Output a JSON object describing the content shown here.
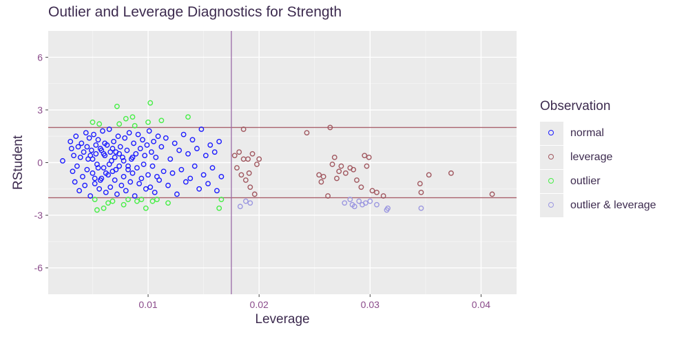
{
  "chart_data": {
    "type": "scatter",
    "title": "Outlier and Leverage Diagnostics for Strength",
    "xlabel": "Leverage",
    "ylabel": "RStudent",
    "xlim": [
      0.001,
      0.0432
    ],
    "ylim": [
      -7.5,
      7.5
    ],
    "x_ticks": [
      0.01,
      0.02,
      0.03,
      0.04
    ],
    "x_tick_labels": [
      "0.01",
      "0.02",
      "0.03",
      "0.04"
    ],
    "y_ticks": [
      -6,
      -3,
      0,
      3,
      6
    ],
    "y_tick_labels": [
      "-6",
      "-3",
      "0",
      "3",
      "6"
    ],
    "grid": true,
    "legend_position": "right",
    "legend_title": "Observation",
    "reference_lines": {
      "horizontal": [
        2,
        -2
      ],
      "vertical": [
        0.0175
      ]
    },
    "colors": {
      "panel_background": "#ebebeb",
      "grid_major": "#ffffff",
      "grid_minor": "#f5f5f5",
      "reference_line_h": "#a9616c",
      "reference_line_v": "#9a6aa6",
      "text": "#3d2b4f",
      "tick_label": "#8a4a8a"
    },
    "series": [
      {
        "name": "normal",
        "color": "#1a1aff",
        "points": [
          [
            0.0023,
            0.1
          ],
          [
            0.003,
            1.2
          ],
          [
            0.0031,
            0.8
          ],
          [
            0.0032,
            -0.5
          ],
          [
            0.0033,
            0.4
          ],
          [
            0.0034,
            -1.1
          ],
          [
            0.0035,
            1.5
          ],
          [
            0.0036,
            -0.2
          ],
          [
            0.0037,
            0.9
          ],
          [
            0.0038,
            -1.6
          ],
          [
            0.0039,
            0.3
          ],
          [
            0.004,
            1.1
          ],
          [
            0.0041,
            -0.8
          ],
          [
            0.0042,
            0.6
          ],
          [
            0.0043,
            -1.3
          ],
          [
            0.0044,
            1.7
          ],
          [
            0.0045,
            -0.4
          ],
          [
            0.0046,
            0.2
          ],
          [
            0.0047,
            1.4
          ],
          [
            0.0048,
            -1.9
          ],
          [
            0.0049,
            0.7
          ],
          [
            0.005,
            -0.6
          ],
          [
            0.0051,
            1.6
          ],
          [
            0.0052,
            -1.2
          ],
          [
            0.0053,
            0.5
          ],
          [
            0.0054,
            -0.1
          ],
          [
            0.0055,
            1.3
          ],
          [
            0.0056,
            -1.5
          ],
          [
            0.0057,
            0.8
          ],
          [
            0.0058,
            -0.9
          ],
          [
            0.0059,
            1.8
          ],
          [
            0.006,
            -0.3
          ],
          [
            0.0061,
            0.4
          ],
          [
            0.0062,
            -1.7
          ],
          [
            0.0063,
            1
          ],
          [
            0.0064,
            -0.7
          ],
          [
            0.0065,
            1.9
          ],
          [
            0.0066,
            -1.4
          ],
          [
            0.0067,
            0.1
          ],
          [
            0.0068,
            -0.5
          ],
          [
            0.0069,
            1.2
          ],
          [
            0.007,
            -1
          ],
          [
            0.0071,
            0.6
          ],
          [
            0.0072,
            -1.8
          ],
          [
            0.0073,
            1.5
          ],
          [
            0.0074,
            -0.2
          ],
          [
            0.0075,
            0.9
          ],
          [
            0.0076,
            -1.3
          ],
          [
            0.0077,
            0.3
          ],
          [
            0.0078,
            -0.8
          ],
          [
            0.0079,
            1.4
          ],
          [
            0.008,
            -1.6
          ],
          [
            0.0081,
            0.7
          ],
          [
            0.0082,
            -0.4
          ],
          [
            0.0083,
            1.7
          ],
          [
            0.0084,
            -1.1
          ],
          [
            0.0085,
            0.2
          ],
          [
            0.0086,
            -0.6
          ],
          [
            0.0087,
            1.1
          ],
          [
            0.0088,
            -1.9
          ],
          [
            0.0089,
            0.5
          ],
          [
            0.009,
            -0.3
          ],
          [
            0.0091,
            1.6
          ],
          [
            0.0092,
            -1.2
          ],
          [
            0.0093,
            0.8
          ],
          [
            0.0094,
            -0.9
          ],
          [
            0.0095,
            1.3
          ],
          [
            0.0096,
            -0.1
          ],
          [
            0.0097,
            0.4
          ],
          [
            0.0098,
            -1.5
          ],
          [
            0.0099,
            1
          ],
          [
            0.01,
            -0.7
          ],
          [
            0.0101,
            1.8
          ],
          [
            0.0102,
            -1.4
          ],
          [
            0.0103,
            0.6
          ],
          [
            0.0104,
            -0.2
          ],
          [
            0.0105,
            1.2
          ],
          [
            0.0106,
            -1.7
          ],
          [
            0.0107,
            0.3
          ],
          [
            0.0108,
            -0.8
          ],
          [
            0.0109,
            1.5
          ],
          [
            0.011,
            -1
          ],
          [
            0.0112,
            0.9
          ],
          [
            0.0114,
            -0.5
          ],
          [
            0.0116,
            1.4
          ],
          [
            0.0118,
            -1.3
          ],
          [
            0.012,
            0.2
          ],
          [
            0.0122,
            -0.6
          ],
          [
            0.0124,
            1.1
          ],
          [
            0.0126,
            -1.8
          ],
          [
            0.0128,
            0.7
          ],
          [
            0.013,
            -0.4
          ],
          [
            0.0132,
            1.6
          ],
          [
            0.0134,
            -1.1
          ],
          [
            0.0136,
            0.5
          ],
          [
            0.0138,
            -0.9
          ],
          [
            0.014,
            1.3
          ],
          [
            0.0142,
            -0.2
          ],
          [
            0.0144,
            0.8
          ],
          [
            0.0146,
            -1.5
          ],
          [
            0.0148,
            1.9
          ],
          [
            0.015,
            -0.7
          ],
          [
            0.0152,
            0.4
          ],
          [
            0.0154,
            -1.2
          ],
          [
            0.0156,
            1
          ],
          [
            0.0158,
            -0.3
          ],
          [
            0.016,
            0.6
          ],
          [
            0.0162,
            -1.6
          ],
          [
            0.0164,
            1.2
          ],
          [
            0.0166,
            -0.8
          ],
          [
            0.0045,
            0.9
          ],
          [
            0.005,
            0.2
          ],
          [
            0.0055,
            -0.3
          ],
          [
            0.006,
            0.5
          ],
          [
            0.0065,
            -0.1
          ],
          [
            0.007,
            0.3
          ],
          [
            0.0058,
            0.7
          ],
          [
            0.0062,
            -0.6
          ],
          [
            0.0068,
            0.8
          ],
          [
            0.0052,
            -0.9
          ],
          [
            0.0048,
            0.4
          ],
          [
            0.0053,
            1
          ],
          [
            0.0057,
            -1
          ],
          [
            0.0061,
            1.1
          ],
          [
            0.0066,
            0.6
          ],
          [
            0.0071,
            -0.4
          ],
          [
            0.0074,
            0.5
          ],
          [
            0.0078,
            0.1
          ],
          [
            0.0082,
            -0.2
          ],
          [
            0.0086,
            0.3
          ]
        ]
      },
      {
        "name": "leverage",
        "color": "#a0565e",
        "points": [
          [
            0.0178,
            0.4
          ],
          [
            0.018,
            -0.3
          ],
          [
            0.0182,
            0.6
          ],
          [
            0.0184,
            -0.7
          ],
          [
            0.0186,
            1.9
          ],
          [
            0.0188,
            -1
          ],
          [
            0.019,
            0.2
          ],
          [
            0.0192,
            -1.4
          ],
          [
            0.0194,
            0.5
          ],
          [
            0.0196,
            -1.8
          ],
          [
            0.0198,
            -0.1
          ],
          [
            0.02,
            0.2
          ],
          [
            0.0186,
            0.2
          ],
          [
            0.0191,
            -0.6
          ],
          [
            0.0243,
            1.7
          ],
          [
            0.0254,
            -0.7
          ],
          [
            0.0256,
            -1.1
          ],
          [
            0.0258,
            -0.8
          ],
          [
            0.0262,
            -1.9
          ],
          [
            0.0264,
            2
          ],
          [
            0.0266,
            -0.1
          ],
          [
            0.0268,
            0.3
          ],
          [
            0.027,
            -0.9
          ],
          [
            0.0272,
            -0.5
          ],
          [
            0.0274,
            -0.2
          ],
          [
            0.0278,
            -0.6
          ],
          [
            0.0282,
            -0.3
          ],
          [
            0.0285,
            -0.4
          ],
          [
            0.0288,
            -1
          ],
          [
            0.0292,
            -1.4
          ],
          [
            0.0295,
            0.4
          ],
          [
            0.0297,
            -0.2
          ],
          [
            0.0299,
            0.3
          ],
          [
            0.0302,
            -1.6
          ],
          [
            0.0306,
            -1.7
          ],
          [
            0.0312,
            -1.9
          ],
          [
            0.0345,
            -1.2
          ],
          [
            0.0346,
            -1.7
          ],
          [
            0.0353,
            -0.7
          ],
          [
            0.0373,
            -0.6
          ],
          [
            0.041,
            -1.8
          ]
        ]
      },
      {
        "name": "outlier",
        "color": "#44ee44",
        "points": [
          [
            0.005,
            2.3
          ],
          [
            0.0052,
            -2.1
          ],
          [
            0.0054,
            -2.7
          ],
          [
            0.0056,
            2.2
          ],
          [
            0.006,
            -2.6
          ],
          [
            0.0064,
            -2.3
          ],
          [
            0.0068,
            -2.2
          ],
          [
            0.0072,
            3.2
          ],
          [
            0.0074,
            2.2
          ],
          [
            0.0078,
            -2.4
          ],
          [
            0.008,
            2.5
          ],
          [
            0.0082,
            -2.1
          ],
          [
            0.0086,
            2.6
          ],
          [
            0.0088,
            2.1
          ],
          [
            0.009,
            -2.2
          ],
          [
            0.0094,
            -2.1
          ],
          [
            0.0098,
            -2.6
          ],
          [
            0.01,
            2.3
          ],
          [
            0.0102,
            3.4
          ],
          [
            0.0104,
            -2.2
          ],
          [
            0.0108,
            -2.1
          ],
          [
            0.0112,
            2.4
          ],
          [
            0.0118,
            -2.3
          ],
          [
            0.0136,
            2.6
          ],
          [
            0.0164,
            -2.6
          ],
          [
            0.0166,
            -2.1
          ]
        ]
      },
      {
        "name": "outlier & leverage",
        "color": "#9b97e0",
        "points": [
          [
            0.0183,
            -2.5
          ],
          [
            0.0188,
            -2.2
          ],
          [
            0.0192,
            -2.3
          ],
          [
            0.0277,
            -2.3
          ],
          [
            0.0282,
            -2.1
          ],
          [
            0.0284,
            -2.4
          ],
          [
            0.0286,
            -2.5
          ],
          [
            0.029,
            -2.2
          ],
          [
            0.0293,
            -2.4
          ],
          [
            0.0296,
            -2.3
          ],
          [
            0.03,
            -2.2
          ],
          [
            0.0306,
            -2.4
          ],
          [
            0.0315,
            -2.7
          ],
          [
            0.0316,
            -2.6
          ],
          [
            0.0346,
            -2.6
          ]
        ]
      }
    ]
  }
}
